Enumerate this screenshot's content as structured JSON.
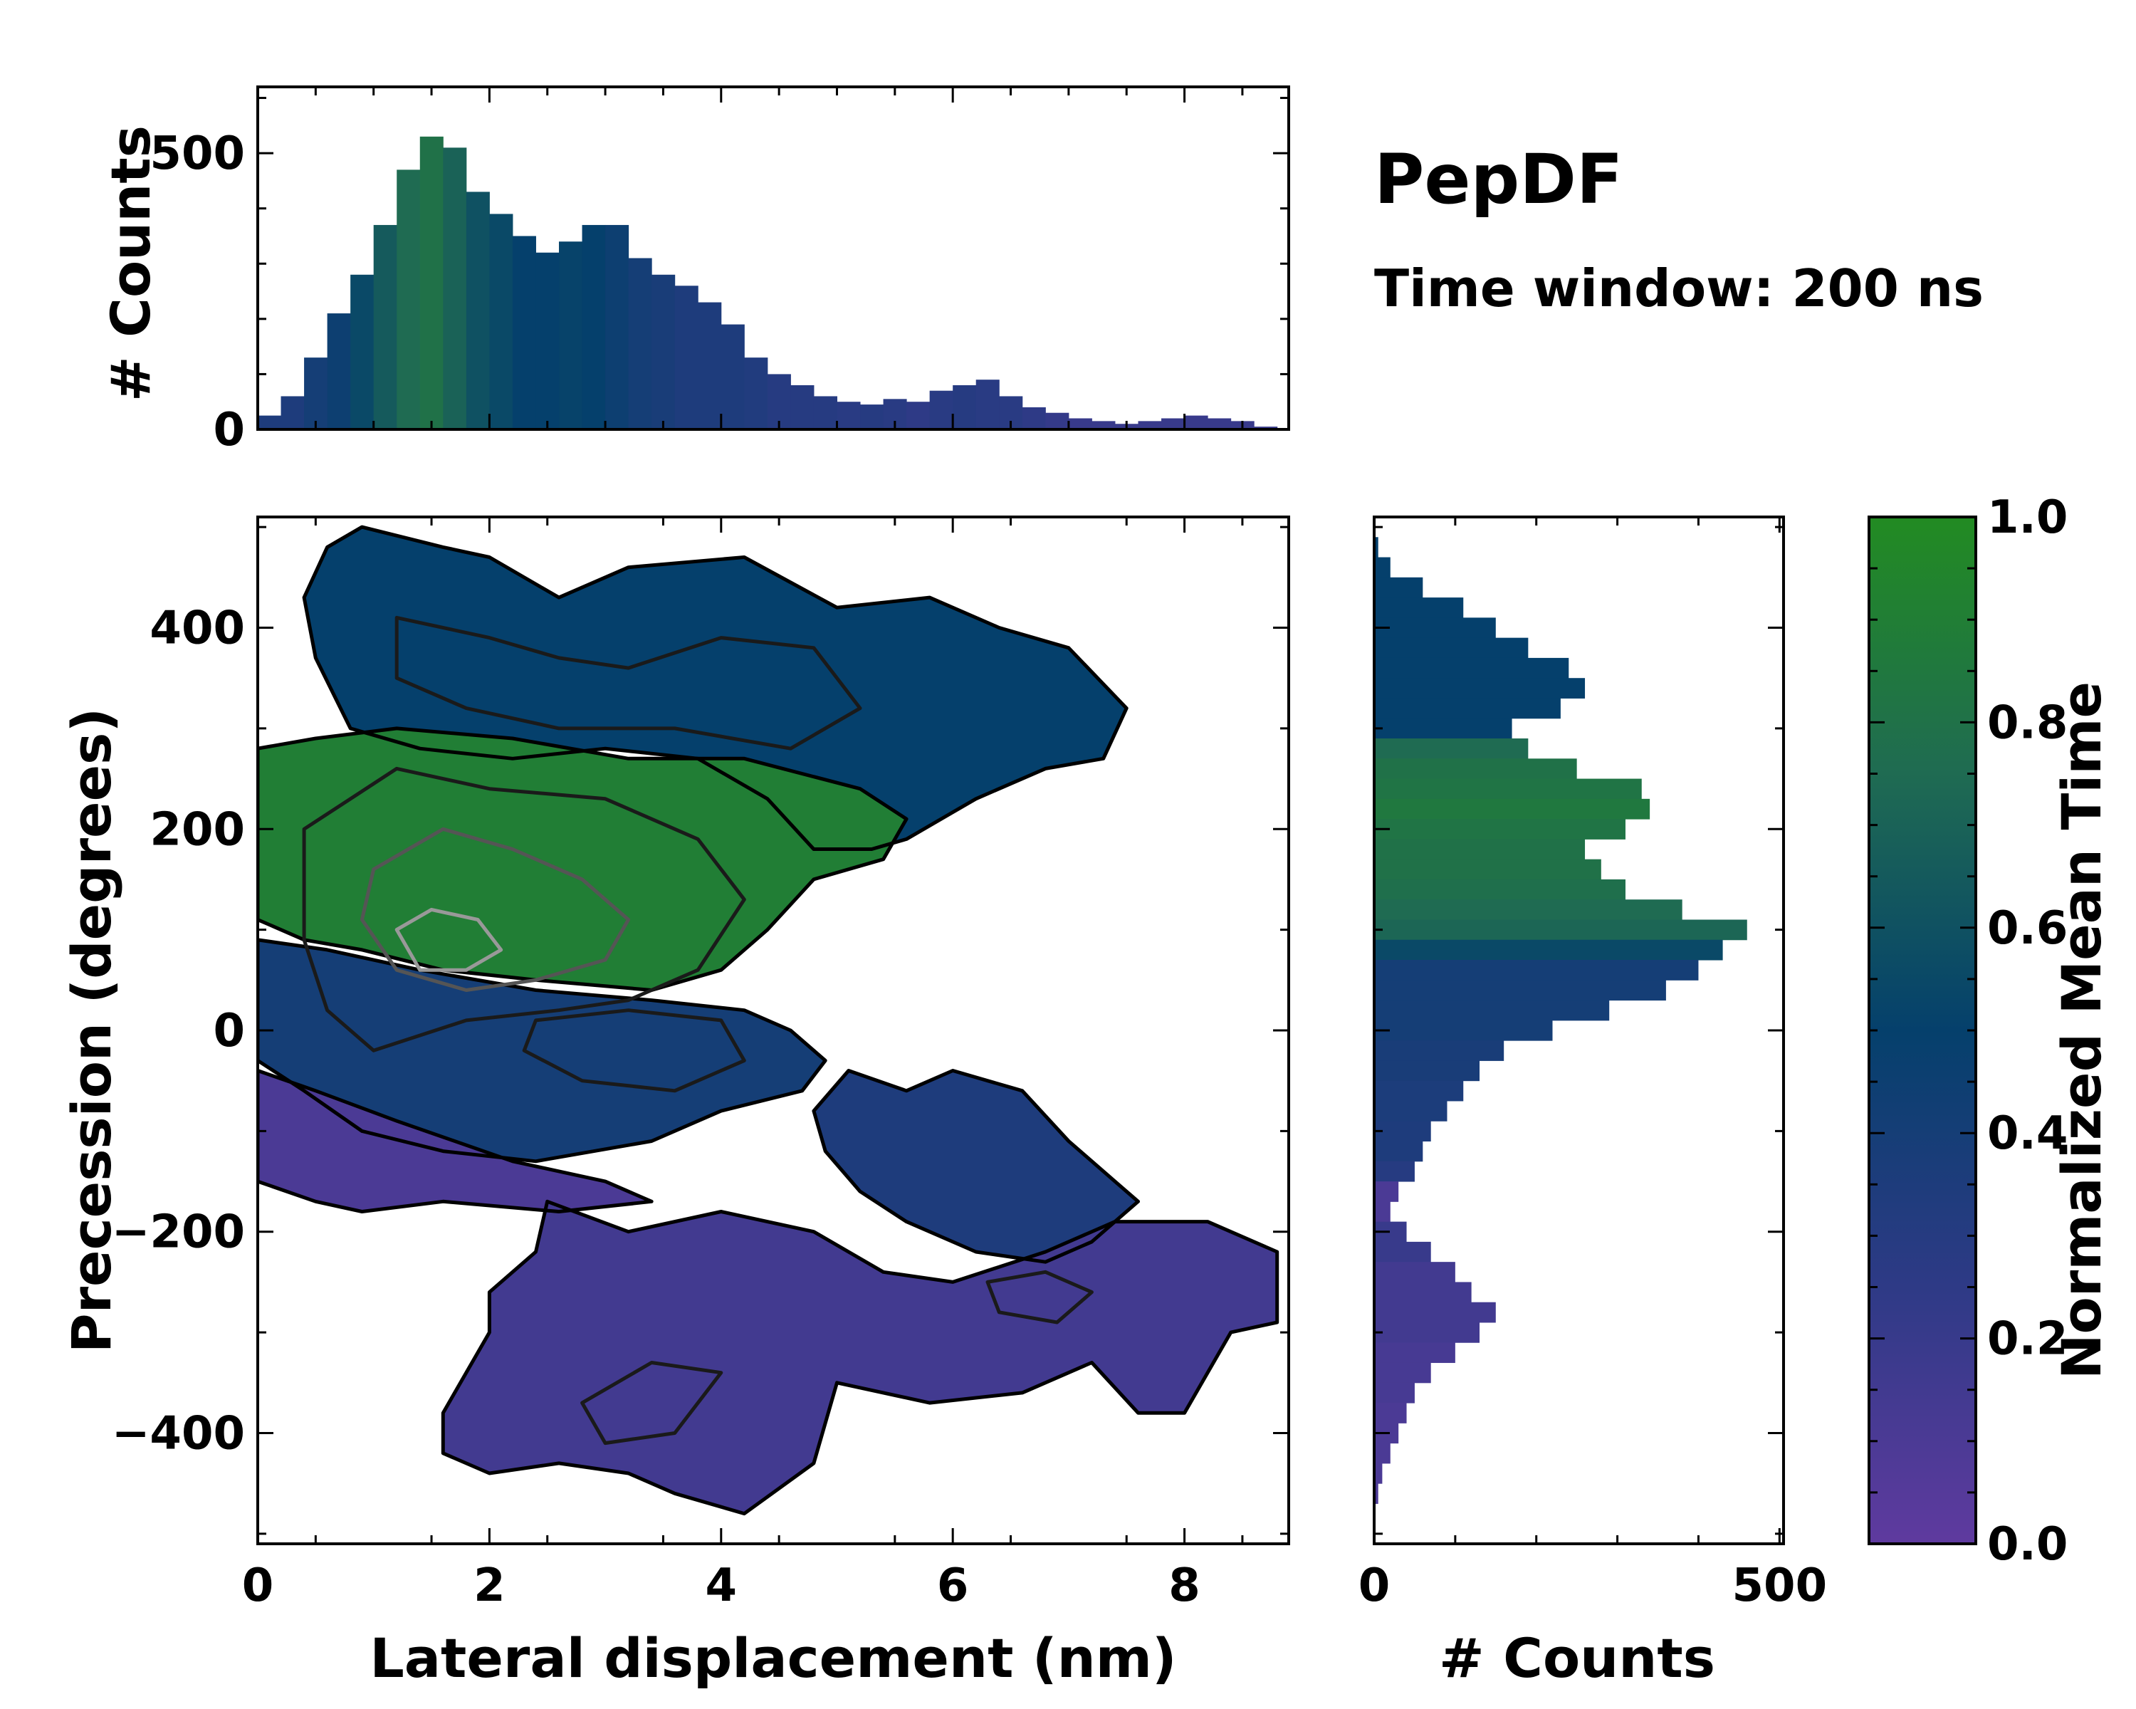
{
  "title": "PepDF",
  "subtitle": "Time window: 200 ns",
  "colors": {
    "low": "#5f3a9f",
    "mid": "#05406c",
    "high": "#228b22",
    "axis": "#000000"
  },
  "chart_data": [
    {
      "type": "bar",
      "name": "top-histogram",
      "title": "",
      "xlabel": "",
      "ylabel": "# Counts",
      "xlim": [
        0,
        8.9
      ],
      "ylim": [
        0,
        620
      ],
      "yticks": [
        0,
        500
      ],
      "ytick_labels": [
        "0",
        "500"
      ],
      "x": [
        0.1,
        0.3,
        0.5,
        0.7,
        0.9,
        1.1,
        1.3,
        1.5,
        1.7,
        1.9,
        2.1,
        2.3,
        2.5,
        2.7,
        2.9,
        3.1,
        3.3,
        3.5,
        3.7,
        3.9,
        4.1,
        4.3,
        4.5,
        4.7,
        4.9,
        5.1,
        5.3,
        5.5,
        5.7,
        5.9,
        6.1,
        6.3,
        6.5,
        6.7,
        6.9,
        7.1,
        7.3,
        7.5,
        7.7,
        7.9,
        8.1,
        8.3,
        8.5,
        8.7
      ],
      "values": [
        25,
        60,
        130,
        210,
        280,
        370,
        470,
        530,
        510,
        430,
        390,
        350,
        320,
        340,
        370,
        370,
        310,
        280,
        260,
        230,
        190,
        130,
        100,
        80,
        60,
        50,
        45,
        55,
        50,
        70,
        80,
        90,
        60,
        40,
        30,
        20,
        15,
        10,
        15,
        20,
        25,
        20,
        15,
        5
      ],
      "mean_time": [
        0.35,
        0.35,
        0.4,
        0.45,
        0.55,
        0.65,
        0.75,
        0.8,
        0.7,
        0.6,
        0.55,
        0.5,
        0.5,
        0.52,
        0.5,
        0.45,
        0.4,
        0.38,
        0.35,
        0.35,
        0.35,
        0.33,
        0.3,
        0.3,
        0.3,
        0.28,
        0.3,
        0.28,
        0.25,
        0.28,
        0.3,
        0.28,
        0.28,
        0.25,
        0.22,
        0.2,
        0.2,
        0.2,
        0.2,
        0.2,
        0.2,
        0.2,
        0.2,
        0.2
      ]
    },
    {
      "type": "heatmap",
      "name": "main-density",
      "title": "",
      "xlabel": "Lateral displacement (nm)",
      "ylabel": "Precession (degrees)",
      "xlim": [
        0,
        8.9
      ],
      "ylim": [
        -510,
        510
      ],
      "xticks": [
        0,
        2,
        4,
        6,
        8
      ],
      "xtick_labels": [
        "0",
        "2",
        "4",
        "6",
        "8"
      ],
      "yticks": [
        -400,
        -200,
        0,
        200,
        400
      ],
      "ytick_labels": [
        "−400",
        "−200",
        "0",
        "200",
        "400"
      ],
      "regions": [
        {
          "name": "top-blue",
          "mean_time": 0.5,
          "points": [
            [
              0.6,
              480
            ],
            [
              0.9,
              500
            ],
            [
              1.6,
              480
            ],
            [
              2.0,
              470
            ],
            [
              2.6,
              430
            ],
            [
              3.2,
              460
            ],
            [
              4.2,
              470
            ],
            [
              5.0,
              420
            ],
            [
              5.8,
              430
            ],
            [
              6.4,
              400
            ],
            [
              7.0,
              380
            ],
            [
              7.5,
              320
            ],
            [
              7.3,
              270
            ],
            [
              6.8,
              260
            ],
            [
              6.2,
              230
            ],
            [
              5.6,
              190
            ],
            [
              5.3,
              180
            ],
            [
              4.8,
              180
            ],
            [
              4.4,
              230
            ],
            [
              3.8,
              270
            ],
            [
              3.0,
              280
            ],
            [
              2.2,
              270
            ],
            [
              1.4,
              280
            ],
            [
              0.8,
              300
            ],
            [
              0.5,
              370
            ],
            [
              0.4,
              430
            ]
          ]
        },
        {
          "name": "middle-green",
          "mean_time": 0.9,
          "points": [
            [
              0.0,
              280
            ],
            [
              0.5,
              290
            ],
            [
              1.2,
              300
            ],
            [
              2.2,
              290
            ],
            [
              3.2,
              270
            ],
            [
              4.2,
              270
            ],
            [
              5.2,
              240
            ],
            [
              5.6,
              210
            ],
            [
              5.4,
              170
            ],
            [
              4.8,
              150
            ],
            [
              4.4,
              100
            ],
            [
              4.0,
              60
            ],
            [
              3.4,
              40
            ],
            [
              2.4,
              50
            ],
            [
              1.6,
              60
            ],
            [
              0.9,
              80
            ],
            [
              0.4,
              90
            ],
            [
              0.0,
              110
            ]
          ]
        },
        {
          "name": "lower-blue",
          "mean_time": 0.4,
          "points": [
            [
              0.0,
              90
            ],
            [
              0.6,
              80
            ],
            [
              1.4,
              60
            ],
            [
              2.4,
              40
            ],
            [
              3.4,
              30
            ],
            [
              4.2,
              20
            ],
            [
              4.6,
              0
            ],
            [
              4.9,
              -30
            ],
            [
              4.7,
              -60
            ],
            [
              4.0,
              -80
            ],
            [
              3.4,
              -110
            ],
            [
              2.4,
              -130
            ],
            [
              1.6,
              -120
            ],
            [
              0.9,
              -100
            ],
            [
              0.4,
              -60
            ],
            [
              0.0,
              -30
            ]
          ]
        },
        {
          "name": "bottom-left-purple",
          "mean_time": 0.1,
          "points": [
            [
              0.0,
              -40
            ],
            [
              0.5,
              -60
            ],
            [
              1.2,
              -90
            ],
            [
              2.2,
              -130
            ],
            [
              3.0,
              -150
            ],
            [
              3.4,
              -170
            ],
            [
              2.6,
              -180
            ],
            [
              1.6,
              -170
            ],
            [
              0.9,
              -180
            ],
            [
              0.5,
              -170
            ],
            [
              0.0,
              -150
            ]
          ]
        },
        {
          "name": "right-blue-lobe",
          "mean_time": 0.35,
          "points": [
            [
              5.1,
              -40
            ],
            [
              5.6,
              -60
            ],
            [
              6.0,
              -40
            ],
            [
              6.6,
              -60
            ],
            [
              7.0,
              -110
            ],
            [
              7.4,
              -150
            ],
            [
              7.6,
              -170
            ],
            [
              7.2,
              -210
            ],
            [
              6.8,
              -230
            ],
            [
              6.2,
              -220
            ],
            [
              5.6,
              -190
            ],
            [
              5.2,
              -160
            ],
            [
              4.9,
              -120
            ],
            [
              4.8,
              -80
            ]
          ]
        },
        {
          "name": "bottom-purple",
          "mean_time": 0.15,
          "points": [
            [
              2.5,
              -170
            ],
            [
              3.2,
              -200
            ],
            [
              4.0,
              -180
            ],
            [
              4.8,
              -200
            ],
            [
              5.4,
              -240
            ],
            [
              6.0,
              -250
            ],
            [
              6.8,
              -220
            ],
            [
              7.4,
              -190
            ],
            [
              8.2,
              -190
            ],
            [
              8.8,
              -220
            ],
            [
              8.8,
              -290
            ],
            [
              8.4,
              -300
            ],
            [
              8.0,
              -380
            ],
            [
              7.6,
              -380
            ],
            [
              7.2,
              -330
            ],
            [
              6.6,
              -360
            ],
            [
              5.8,
              -370
            ],
            [
              5.0,
              -350
            ],
            [
              4.8,
              -430
            ],
            [
              4.2,
              -480
            ],
            [
              3.6,
              -460
            ],
            [
              3.2,
              -440
            ],
            [
              2.6,
              -430
            ],
            [
              2.0,
              -440
            ],
            [
              1.6,
              -420
            ],
            [
              1.6,
              -380
            ],
            [
              2.0,
              -300
            ],
            [
              2.0,
              -260
            ],
            [
              2.4,
              -220
            ]
          ]
        }
      ],
      "contour_levels": [
        {
          "name": "contour-top-outer",
          "shade": "#1a1a1a",
          "points": [
            [
              1.2,
              410
            ],
            [
              2.0,
              390
            ],
            [
              2.6,
              370
            ],
            [
              3.2,
              360
            ],
            [
              4.0,
              390
            ],
            [
              4.8,
              380
            ],
            [
              5.2,
              320
            ],
            [
              4.6,
              280
            ],
            [
              3.6,
              300
            ],
            [
              2.6,
              300
            ],
            [
              1.8,
              320
            ],
            [
              1.2,
              350
            ]
          ]
        },
        {
          "name": "contour-center-outer",
          "shade": "#1a1a1a",
          "points": [
            [
              0.4,
              200
            ],
            [
              1.2,
              260
            ],
            [
              2.0,
              240
            ],
            [
              3.0,
              230
            ],
            [
              3.8,
              190
            ],
            [
              4.2,
              130
            ],
            [
              3.8,
              60
            ],
            [
              3.2,
              30
            ],
            [
              2.6,
              20
            ],
            [
              1.8,
              10
            ],
            [
              1.0,
              -20
            ],
            [
              0.6,
              20
            ],
            [
              0.4,
              90
            ]
          ]
        },
        {
          "name": "contour-center-mid",
          "shade": "#555555",
          "points": [
            [
              1.0,
              160
            ],
            [
              1.6,
              200
            ],
            [
              2.2,
              180
            ],
            [
              2.8,
              150
            ],
            [
              3.2,
              110
            ],
            [
              3.0,
              70
            ],
            [
              2.4,
              50
            ],
            [
              1.8,
              40
            ],
            [
              1.2,
              60
            ],
            [
              0.9,
              110
            ]
          ]
        },
        {
          "name": "contour-center-inner",
          "shade": "#999999",
          "points": [
            [
              1.2,
              100
            ],
            [
              1.5,
              120
            ],
            [
              1.9,
              110
            ],
            [
              2.1,
              80
            ],
            [
              1.8,
              60
            ],
            [
              1.4,
              60
            ]
          ]
        },
        {
          "name": "contour-lower",
          "shade": "#1a1a1a",
          "points": [
            [
              2.4,
              10
            ],
            [
              3.2,
              20
            ],
            [
              4.0,
              10
            ],
            [
              4.2,
              -30
            ],
            [
              3.6,
              -60
            ],
            [
              2.8,
              -50
            ],
            [
              2.3,
              -20
            ]
          ]
        },
        {
          "name": "contour-bottom",
          "shade": "#1a1a1a",
          "points": [
            [
              2.8,
              -370
            ],
            [
              3.4,
              -330
            ],
            [
              4.0,
              -340
            ],
            [
              3.6,
              -400
            ],
            [
              3.0,
              -410
            ]
          ]
        },
        {
          "name": "contour-right",
          "shade": "#1a1a1a",
          "points": [
            [
              6.3,
              -250
            ],
            [
              6.8,
              -240
            ],
            [
              7.2,
              -260
            ],
            [
              6.9,
              -290
            ],
            [
              6.4,
              -280
            ]
          ]
        }
      ]
    },
    {
      "type": "bar",
      "name": "right-histogram",
      "orientation": "horizontal",
      "title": "",
      "xlabel": "# Counts",
      "ylabel": "",
      "xlim": [
        0,
        505
      ],
      "ylim": [
        -510,
        510
      ],
      "xticks": [
        0,
        500
      ],
      "xtick_labels": [
        "0",
        "500"
      ],
      "y": [
        480,
        460,
        440,
        420,
        400,
        380,
        360,
        340,
        320,
        300,
        280,
        260,
        240,
        220,
        200,
        180,
        160,
        140,
        120,
        100,
        80,
        60,
        40,
        20,
        0,
        -20,
        -40,
        -60,
        -80,
        -100,
        -120,
        -140,
        -160,
        -180,
        -200,
        -220,
        -240,
        -260,
        -280,
        -300,
        -320,
        -340,
        -360,
        -380,
        -400,
        -420,
        -440,
        -460
      ],
      "values": [
        5,
        20,
        60,
        110,
        150,
        190,
        240,
        260,
        230,
        170,
        190,
        250,
        330,
        340,
        310,
        260,
        280,
        310,
        380,
        460,
        430,
        400,
        360,
        290,
        220,
        160,
        130,
        110,
        90,
        70,
        60,
        50,
        30,
        20,
        40,
        70,
        100,
        120,
        150,
        130,
        100,
        70,
        50,
        40,
        30,
        20,
        10,
        5
      ],
      "mean_time": [
        0.5,
        0.5,
        0.5,
        0.5,
        0.5,
        0.5,
        0.5,
        0.5,
        0.5,
        0.5,
        0.75,
        0.8,
        0.82,
        0.85,
        0.82,
        0.8,
        0.8,
        0.78,
        0.75,
        0.72,
        0.55,
        0.4,
        0.4,
        0.4,
        0.4,
        0.38,
        0.38,
        0.36,
        0.36,
        0.35,
        0.35,
        0.3,
        0.1,
        0.1,
        0.2,
        0.2,
        0.15,
        0.15,
        0.15,
        0.15,
        0.12,
        0.12,
        0.12,
        0.1,
        0.1,
        0.1,
        0.1,
        0.1
      ]
    },
    {
      "type": "colorbar",
      "name": "colorbar",
      "label": "Normalized Mean Time",
      "range": [
        0,
        1
      ],
      "ticks": [
        0.0,
        0.2,
        0.4,
        0.6,
        0.8,
        1.0
      ],
      "tick_labels": [
        "0.0",
        "0.2",
        "0.4",
        "0.6",
        "0.8",
        "1.0"
      ],
      "stops": [
        {
          "offset": 0.0,
          "color": "#5f3a9f"
        },
        {
          "offset": 0.25,
          "color": "#2e3a86"
        },
        {
          "offset": 0.5,
          "color": "#05406c"
        },
        {
          "offset": 0.75,
          "color": "#1f6b52"
        },
        {
          "offset": 1.0,
          "color": "#228b22"
        }
      ]
    }
  ]
}
